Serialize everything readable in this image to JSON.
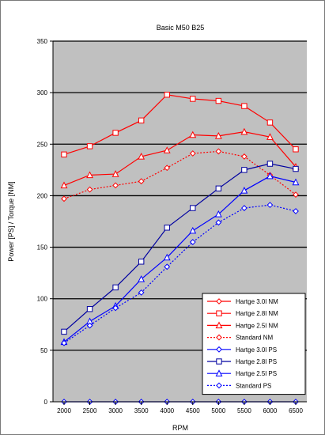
{
  "chart_data": {
    "type": "line",
    "title": "Basic M50 B25",
    "xlabel": "RPM",
    "ylabel": "Power [PS] / Torque [NM]",
    "x": [
      2000,
      2500,
      3000,
      3500,
      4000,
      4500,
      5000,
      5500,
      6000,
      6500
    ],
    "xticklabels": [
      "2000",
      "2500",
      "3000",
      "3500",
      "4000",
      "4500",
      "5000",
      "5500",
      "6000",
      "6500"
    ],
    "ylim": [
      0,
      350
    ],
    "yticks": [
      0,
      50,
      100,
      150,
      200,
      250,
      300,
      350
    ],
    "grid": "horizontal",
    "legend_position": "bottom-right",
    "plot_background": "#c0c0c0",
    "series": [
      {
        "name": "Hartge 3.0l NM",
        "color": "#ff0000",
        "dash": "solid",
        "marker": "diamond",
        "values": [
          null,
          null,
          null,
          null,
          null,
          null,
          null,
          null,
          null,
          null
        ]
      },
      {
        "name": "Hartge 2.8l NM",
        "color": "#ff0000",
        "dash": "solid",
        "marker": "square",
        "values": [
          240,
          248,
          261,
          273,
          298,
          294,
          292,
          287,
          271,
          245
        ]
      },
      {
        "name": "Hartge 2.5l NM",
        "color": "#ff0000",
        "dash": "solid",
        "marker": "triangle",
        "values": [
          210,
          220,
          221,
          238,
          244,
          259,
          258,
          262,
          257,
          228
        ]
      },
      {
        "name": "Standard NM",
        "color": "#ff0000",
        "dash": "dotted",
        "marker": "diamond",
        "values": [
          197,
          206,
          210,
          214,
          227,
          241,
          243,
          238,
          220,
          201
        ]
      },
      {
        "name": "Hartge 3.0l PS",
        "color": "#0000ff",
        "dash": "solid",
        "marker": "diamond",
        "values": [
          0,
          0,
          0,
          0,
          0,
          0,
          0,
          0,
          0,
          0
        ]
      },
      {
        "name": "Hartge 2.8l PS",
        "color": "#0000a0",
        "dash": "solid",
        "marker": "square",
        "values": [
          68,
          90,
          111,
          136,
          169,
          188,
          207,
          225,
          231,
          226
        ]
      },
      {
        "name": "Hartge 2.5l PS",
        "color": "#0000ff",
        "dash": "solid",
        "marker": "triangle",
        "values": [
          58,
          78,
          93,
          119,
          140,
          166,
          182,
          205,
          219,
          213
        ]
      },
      {
        "name": "Standard PS",
        "color": "#0000ff",
        "dash": "dotted",
        "marker": "diamond",
        "values": [
          57,
          74,
          91,
          106,
          131,
          155,
          174,
          188,
          191,
          185
        ]
      }
    ]
  }
}
